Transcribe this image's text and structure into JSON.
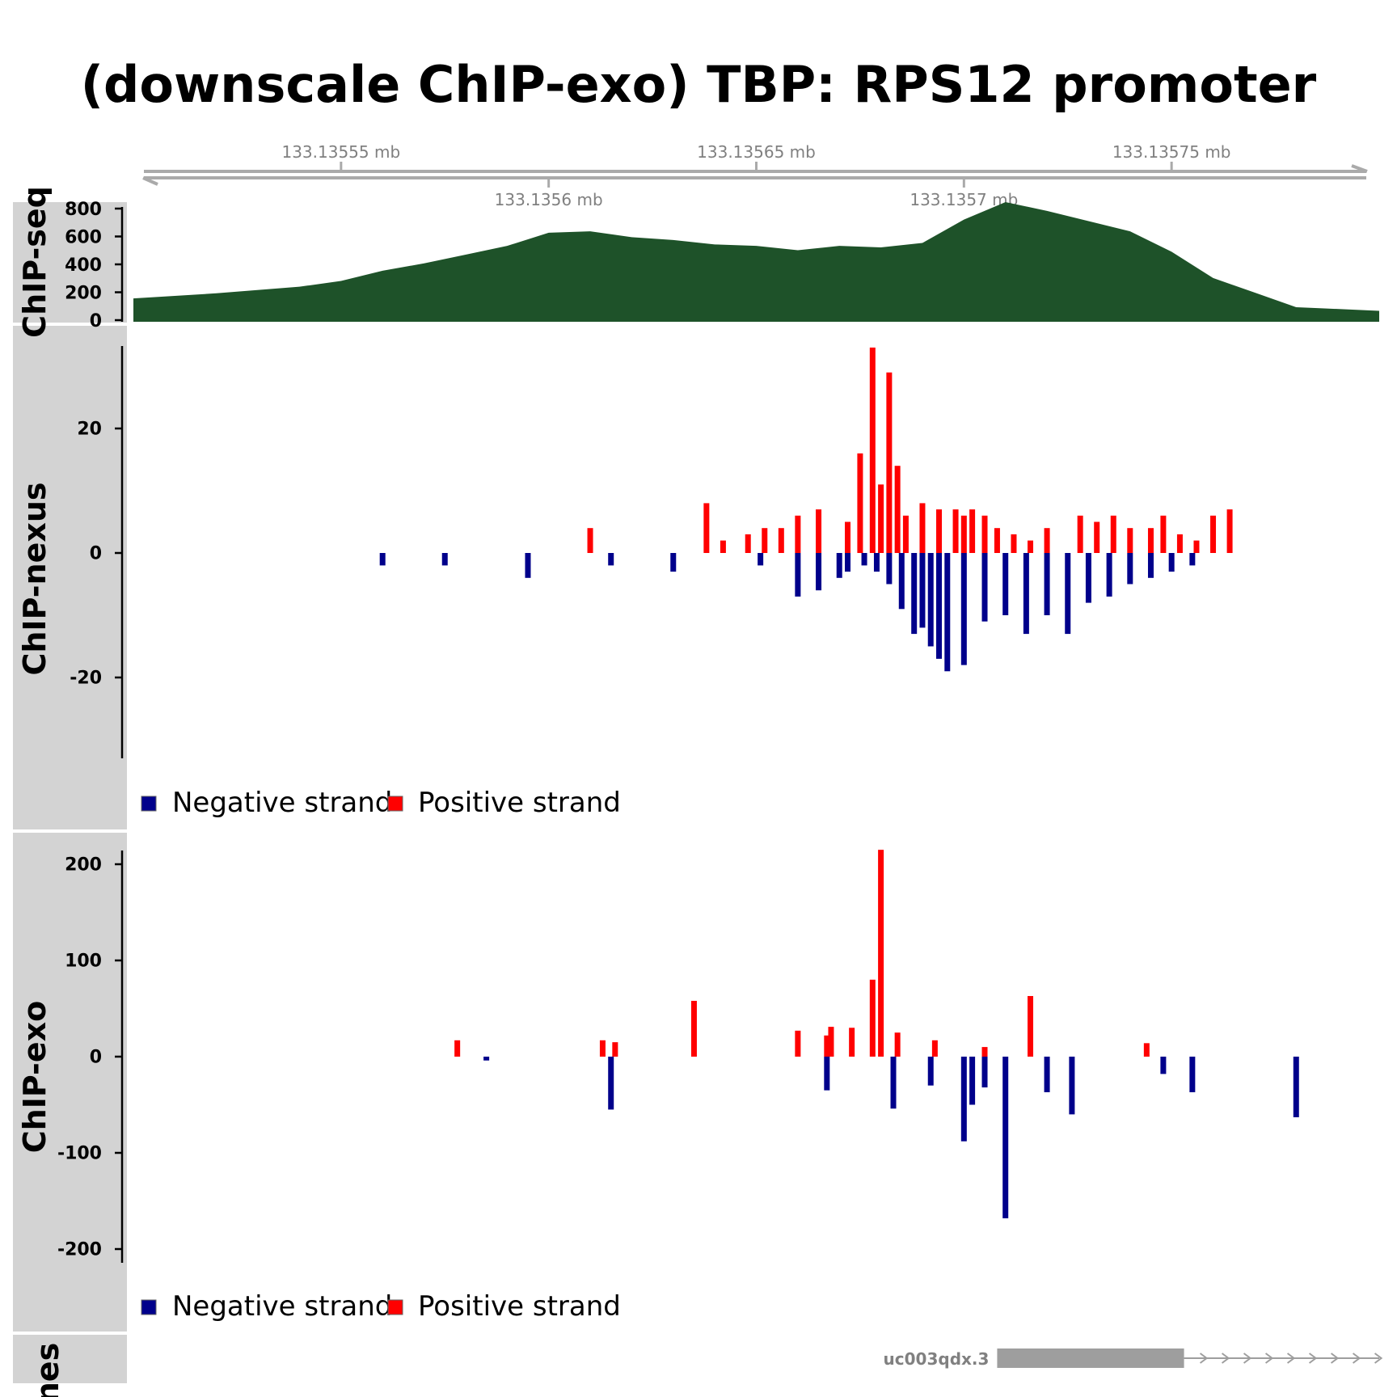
{
  "title": "(downscale ChIP-exo) TBP: RPS12 promoter",
  "colors": {
    "axis_line": "#aaaaaa",
    "axis_text": "#808080",
    "panel_bg": "#d3d3d3",
    "chipseq_fill": "#1e5229",
    "negative": "#00008b",
    "positive": "#ff0000",
    "gene": "#9e9e9e"
  },
  "genome_axis": {
    "xlim": [
      133.1355,
      133.1358
    ],
    "ticks_upper": [
      {
        "value": 133.13555,
        "label": "133.13555 mb"
      },
      {
        "value": 133.13565,
        "label": "133.13565 mb"
      },
      {
        "value": 133.13575,
        "label": "133.13575 mb"
      }
    ],
    "ticks_lower": [
      {
        "value": 133.1356,
        "label": "133.1356 mb"
      },
      {
        "value": 133.1357,
        "label": "133.1357 mb"
      }
    ]
  },
  "chart_data": [
    {
      "type": "area",
      "track": "ChIP-seq",
      "ylabel": "ChIP-seq",
      "ylim": [
        0,
        820
      ],
      "yticks": [
        0,
        200,
        400,
        600,
        800
      ],
      "x": [
        133.1355,
        133.13552,
        133.13554,
        133.13555,
        133.13556,
        133.13557,
        133.13558,
        133.13559,
        133.1356,
        133.13561,
        133.13562,
        133.13563,
        133.13564,
        133.13565,
        133.13566,
        133.13567,
        133.13568,
        133.13569,
        133.1357,
        133.13571,
        133.13572,
        133.13573,
        133.13574,
        133.13575,
        133.13576,
        133.13577,
        133.13578,
        133.1358
      ],
      "y": [
        160,
        195,
        240,
        280,
        350,
        400,
        460,
        520,
        610,
        620,
        580,
        560,
        530,
        520,
        490,
        520,
        510,
        540,
        700,
        820,
        760,
        690,
        620,
        480,
        300,
        200,
        100,
        75
      ]
    },
    {
      "type": "bar",
      "track": "ChIP-nexus",
      "ylabel": "ChIP-nexus",
      "ylim": [
        -33,
        33
      ],
      "yticks": [
        -20,
        0,
        20
      ],
      "legend": [
        "Negative strand",
        "Positive strand"
      ],
      "series": [
        {
          "name": "Positive strand",
          "x": [
            133.13561,
            133.135638,
            133.135642,
            133.135648,
            133.135652,
            133.135656,
            133.13566,
            133.135665,
            133.135672,
            133.135675,
            133.135678,
            133.13568,
            133.135682,
            133.135684,
            133.135686,
            133.13569,
            133.135694,
            133.135698,
            133.1357,
            133.135702,
            133.135705,
            133.135708,
            133.135712,
            133.135716,
            133.13572,
            133.135728,
            133.135732,
            133.135736,
            133.13574,
            133.135745,
            133.135748,
            133.135752,
            133.135756,
            133.13576,
            133.135764
          ],
          "y": [
            4,
            8,
            2,
            3,
            4,
            4,
            6,
            7,
            5,
            16,
            33,
            11,
            29,
            14,
            6,
            8,
            7,
            7,
            6,
            7,
            6,
            4,
            3,
            2,
            4,
            6,
            5,
            6,
            4,
            4,
            6,
            3,
            2,
            6,
            7
          ]
        },
        {
          "name": "Negative strand",
          "x": [
            133.13556,
            133.135575,
            133.135595,
            133.135615,
            133.13563,
            133.135651,
            133.13566,
            133.135665,
            133.13567,
            133.135672,
            133.135676,
            133.135679,
            133.135682,
            133.135685,
            133.135688,
            133.13569,
            133.135692,
            133.135694,
            133.135696,
            133.1357,
            133.135705,
            133.13571,
            133.135715,
            133.13572,
            133.135725,
            133.13573,
            133.135735,
            133.13574,
            133.135745,
            133.13575,
            133.135755
          ],
          "y": [
            -2,
            -2,
            -4,
            -2,
            -3,
            -2,
            -7,
            -6,
            -4,
            -3,
            -2,
            -3,
            -5,
            -9,
            -13,
            -12,
            -15,
            -17,
            -19,
            -18,
            -11,
            -10,
            -13,
            -10,
            -13,
            -8,
            -7,
            -5,
            -4,
            -3,
            -2
          ]
        }
      ]
    },
    {
      "type": "bar",
      "track": "ChIP-exo",
      "ylabel": "ChIP-exo",
      "ylim": [
        -215,
        215
      ],
      "yticks": [
        -200,
        -100,
        0,
        100,
        200
      ],
      "legend": [
        "Negative strand",
        "Positive strand"
      ],
      "series": [
        {
          "name": "Positive strand",
          "x": [
            133.135578,
            133.135613,
            133.135616,
            133.135635,
            133.13566,
            133.135667,
            133.135668,
            133.135673,
            133.135678,
            133.13568,
            133.135684,
            133.135693,
            133.135705,
            133.135716,
            133.135744
          ],
          "y": [
            17,
            17,
            15,
            58,
            27,
            22,
            31,
            30,
            80,
            215,
            25,
            17,
            10,
            63,
            14
          ]
        },
        {
          "name": "Negative strand",
          "x": [
            133.135585,
            133.135615,
            133.135667,
            133.135683,
            133.135692,
            133.1357,
            133.135702,
            133.135705,
            133.13571,
            133.13572,
            133.135726,
            133.135748,
            133.135755,
            133.13578
          ],
          "y": [
            -4,
            -55,
            -35,
            -54,
            -30,
            -88,
            -50,
            -32,
            -168,
            -37,
            -60,
            -18,
            -37,
            -63
          ]
        }
      ]
    }
  ],
  "genes": {
    "label": "Genes",
    "transcript": "uc003qdx.3",
    "exon_range": [
      133.135708,
      133.135753
    ],
    "line_range": [
      133.135753,
      133.1358
    ]
  }
}
